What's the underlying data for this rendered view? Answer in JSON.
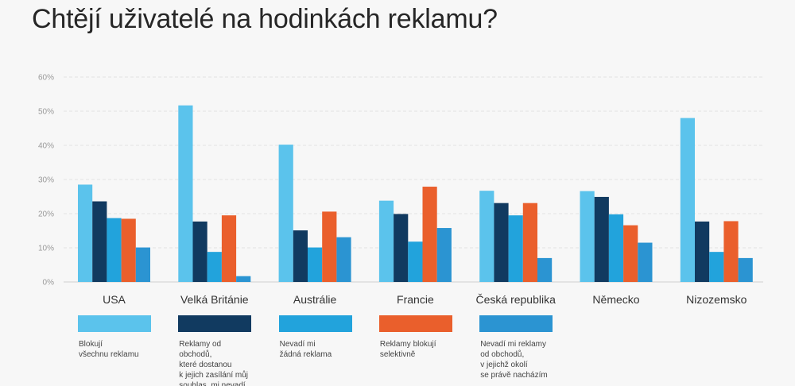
{
  "chart_data": {
    "type": "bar",
    "title": "Chtějí uživatelé na hodinkách reklamu?",
    "categories": [
      "USA",
      "Velká Británie",
      "Austrálie",
      "Francie",
      "Česká republika",
      "Německo",
      "Nizozemsko"
    ],
    "series": [
      {
        "name": "Blokují\nvšechnu reklamu",
        "color": "#5bc3ec",
        "values": [
          28.5,
          51.7,
          40.2,
          23.8,
          26.7,
          26.6,
          48.0
        ]
      },
      {
        "name": "Reklamy od obchodů,\nkteré dostanou\nk jejich zasílání můj\nsouhlas, mi nevadí",
        "color": "#113a60",
        "values": [
          23.6,
          17.7,
          15.1,
          19.9,
          23.1,
          24.9,
          17.7
        ]
      },
      {
        "name": "Nevadí mi\nžádná reklama",
        "color": "#22a3dc",
        "values": [
          18.7,
          8.8,
          10.1,
          11.8,
          19.5,
          19.8,
          8.8
        ]
      },
      {
        "name": "Reklamy blokují\nselektivně",
        "color": "#ea5f2c",
        "values": [
          18.5,
          19.5,
          20.6,
          27.9,
          23.1,
          16.6,
          17.8
        ]
      },
      {
        "name": "Nevadí mi reklamy\nod obchodů,\nv jejichž okolí\nse právě nacházím",
        "color": "#2b94d2",
        "values": [
          10.1,
          1.7,
          13.1,
          15.8,
          7.0,
          11.5,
          7.0
        ]
      }
    ],
    "yticks": [
      "0%",
      "10%",
      "20%",
      "30%",
      "40%",
      "50%",
      "60%"
    ],
    "ylim": [
      0,
      60
    ],
    "grid": true,
    "legend_position": "bottom"
  }
}
